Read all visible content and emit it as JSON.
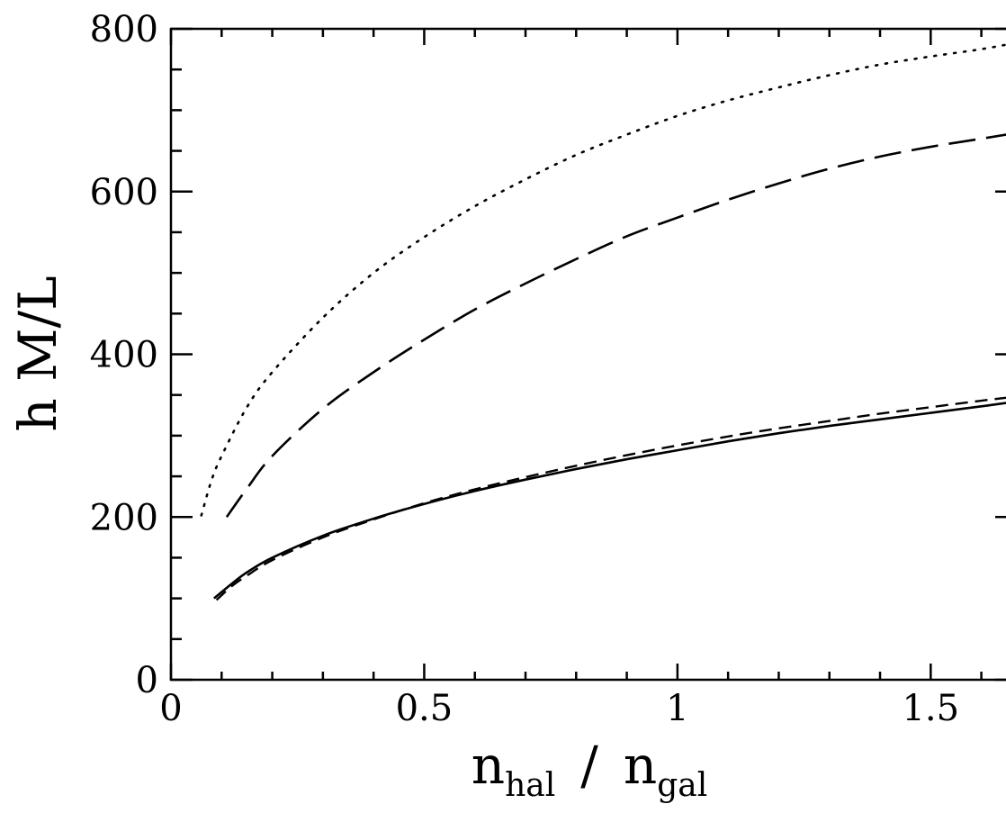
{
  "chart_data": {
    "type": "line",
    "title": "",
    "xlabel": {
      "main": "n",
      "sub": "hal",
      "slash": "/",
      "main2": "n",
      "sub2": "gal"
    },
    "ylabel": "h M/L",
    "xlim": [
      0,
      1.67
    ],
    "ylim": [
      0,
      800
    ],
    "x_ticks_major": [
      0,
      0.5,
      1,
      1.5
    ],
    "x_tick_labels": [
      "0",
      "0.5",
      "1",
      "1.5"
    ],
    "y_ticks_major": [
      0,
      200,
      400,
      600,
      800
    ],
    "y_tick_labels": [
      "0",
      "200",
      "400",
      "600",
      "800"
    ],
    "grid": false,
    "series": [
      {
        "style": "dotted",
        "x": [
          0.06,
          0.08,
          0.1,
          0.15,
          0.2,
          0.3,
          0.4,
          0.5,
          0.6,
          0.7,
          0.8,
          0.9,
          1.0,
          1.1,
          1.2,
          1.3,
          1.4,
          1.5,
          1.6,
          1.67
        ],
        "y": [
          202,
          245,
          275,
          335,
          378,
          445,
          500,
          544,
          582,
          615,
          645,
          670,
          693,
          712,
          728,
          743,
          756,
          766,
          775,
          783
        ]
      },
      {
        "style": "long-dash",
        "x": [
          0.11,
          0.15,
          0.2,
          0.3,
          0.4,
          0.5,
          0.6,
          0.7,
          0.8,
          0.9,
          1.0,
          1.1,
          1.2,
          1.3,
          1.4,
          1.5,
          1.6,
          1.67
        ],
        "y": [
          200,
          235,
          275,
          333,
          378,
          418,
          455,
          487,
          517,
          545,
          568,
          590,
          610,
          628,
          643,
          655,
          665,
          672
        ]
      },
      {
        "style": "short-dash",
        "x": [
          0.09,
          0.12,
          0.15,
          0.2,
          0.3,
          0.4,
          0.5,
          0.6,
          0.7,
          0.8,
          0.9,
          1.0,
          1.1,
          1.2,
          1.3,
          1.4,
          1.5,
          1.6,
          1.67
        ],
        "y": [
          98,
          115,
          128,
          147,
          175,
          197,
          217,
          234,
          249,
          263,
          276,
          288,
          299,
          309,
          318,
          327,
          335,
          343,
          348
        ]
      },
      {
        "style": "solid",
        "x": [
          0.085,
          0.12,
          0.15,
          0.2,
          0.3,
          0.4,
          0.5,
          0.6,
          0.7,
          0.8,
          0.9,
          1.0,
          1.1,
          1.2,
          1.3,
          1.4,
          1.5,
          1.6,
          1.67
        ],
        "y": [
          100,
          118,
          132,
          150,
          177,
          198,
          216,
          232,
          246,
          259,
          271,
          282,
          293,
          303,
          312,
          320,
          328,
          336,
          342
        ]
      }
    ]
  }
}
